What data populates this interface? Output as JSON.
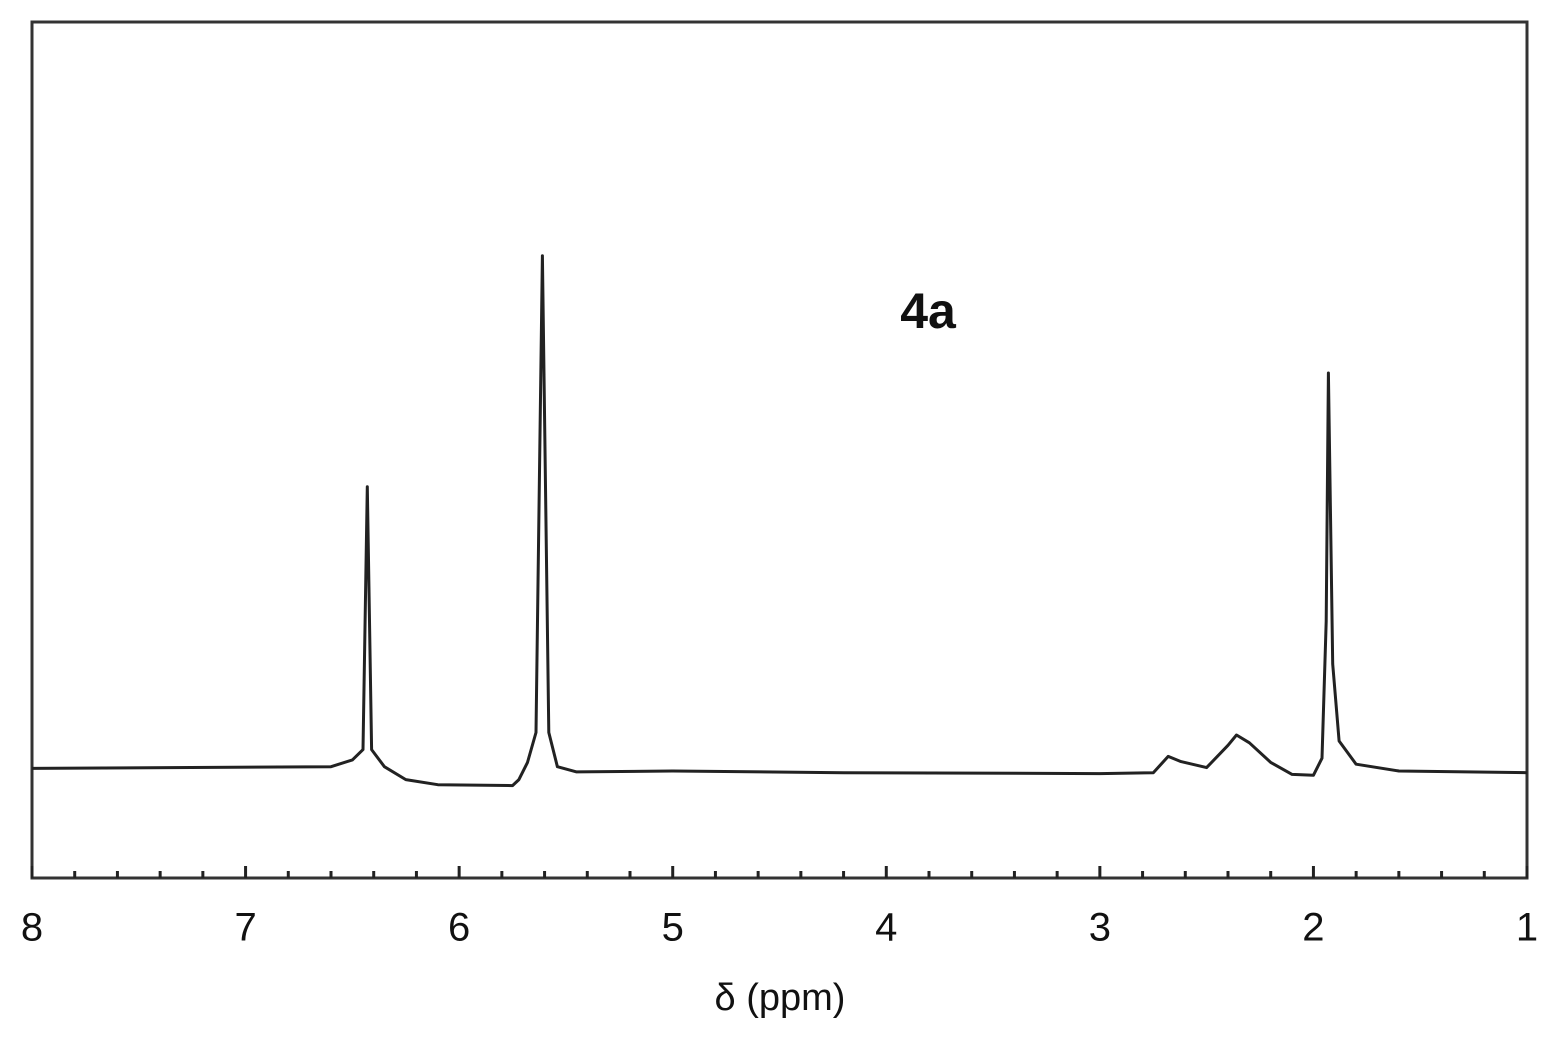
{
  "chart_data": {
    "type": "line",
    "annotation": "4a",
    "x_label": "δ (ppm)",
    "xlim": [
      8,
      1
    ],
    "xticks": [
      8,
      7,
      6,
      5,
      4,
      3,
      2,
      1
    ],
    "xminorticks": [
      7.8,
      7.6,
      7.4,
      7.2,
      6.8,
      6.6,
      6.4,
      6.2,
      5.8,
      5.6,
      5.4,
      5.2,
      4.8,
      4.6,
      4.4,
      4.2,
      3.8,
      3.6,
      3.4,
      3.2,
      2.8,
      2.6,
      2.4,
      2.2,
      1.8,
      1.6,
      1.4,
      1.2
    ],
    "ylim": [
      0,
      100
    ],
    "x": [
      8.0,
      6.6,
      6.5,
      6.45,
      6.43,
      6.41,
      6.35,
      6.25,
      6.1,
      5.75,
      5.72,
      5.68,
      5.64,
      5.61,
      5.58,
      5.54,
      5.45,
      5.0,
      4.2,
      3.0,
      2.75,
      2.68,
      2.62,
      2.5,
      2.4,
      2.36,
      2.3,
      2.2,
      2.1,
      2.0,
      1.96,
      1.94,
      1.93,
      1.91,
      1.88,
      1.8,
      1.6,
      1.0
    ],
    "series": [
      {
        "color": "#222222",
        "values": [
          12.8,
          13.0,
          13.8,
          15,
          45.7,
          15,
          13,
          11.5,
          10.9,
          10.8,
          11.5,
          13.5,
          17,
          72.7,
          17,
          13,
          12.4,
          12.5,
          12.3,
          12.2,
          12.3,
          14.2,
          13.6,
          12.9,
          15.5,
          16.7,
          15.8,
          13.5,
          12.1,
          12.0,
          14,
          30,
          59.0,
          25,
          16,
          13.3,
          12.5,
          12.3
        ]
      }
    ]
  }
}
